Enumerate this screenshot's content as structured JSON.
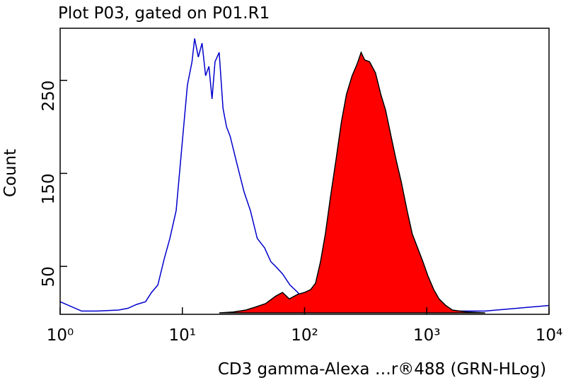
{
  "chart_data": {
    "type": "histogram-overlay",
    "title": "Plot P03, gated on P01.R1",
    "x_label": "CD3 gamma-Alexa …r®488 (GRN-HLog)",
    "y_label": "Count",
    "xscale": "log",
    "xlim": [
      1,
      10000
    ],
    "xticks": [
      {
        "value": 1,
        "label": "10⁰"
      },
      {
        "value": 10,
        "label": "10¹"
      },
      {
        "value": 100,
        "label": "10²"
      },
      {
        "value": 1000,
        "label": "10³"
      },
      {
        "value": 10000,
        "label": "10⁴"
      }
    ],
    "ylim": [
      0,
      306
    ],
    "yticks": [
      50,
      150,
      250
    ],
    "series": [
      {
        "color": "#0000cc",
        "fill": false,
        "x": [
          1,
          1.5,
          2,
          3,
          3.6,
          4.2,
          5,
          5.6,
          6.3,
          7.1,
          7.9,
          8.9,
          10,
          11,
          12,
          12.6,
          13.5,
          14.5,
          15.5,
          16.5,
          17.5,
          18.5,
          20,
          21.5,
          23,
          24.6,
          28,
          32,
          36,
          41,
          47,
          53,
          58,
          66,
          76,
          88,
          100,
          115,
          130,
          200,
          500,
          1000,
          3000,
          10000
        ],
        "values": [
          12,
          2,
          2,
          3,
          5,
          9,
          12,
          22,
          30,
          58,
          80,
          110,
          185,
          245,
          270,
          295,
          275,
          290,
          255,
          265,
          230,
          270,
          280,
          220,
          200,
          190,
          160,
          130,
          110,
          80,
          70,
          55,
          50,
          42,
          30,
          22,
          12,
          8,
          3,
          2,
          2,
          2,
          2,
          8
        ]
      },
      {
        "color": "#ff0000",
        "fill": true,
        "x": [
          20,
          26,
          33,
          39,
          48,
          58,
          66,
          75,
          88,
          100,
          112,
          123,
          135,
          148,
          163,
          181,
          200,
          220,
          245,
          270,
          290,
          310,
          340,
          380,
          420,
          460,
          510,
          560,
          620,
          690,
          760,
          840,
          930,
          1020,
          1140,
          1260,
          1430,
          1620,
          2140,
          3000
        ],
        "values": [
          0,
          1,
          3,
          6,
          10,
          18,
          22,
          15,
          20,
          22,
          25,
          32,
          55,
          85,
          125,
          165,
          205,
          235,
          255,
          268,
          280,
          272,
          270,
          258,
          235,
          218,
          190,
          165,
          140,
          110,
          85,
          70,
          55,
          40,
          25,
          15,
          8,
          3,
          1,
          0
        ]
      }
    ]
  }
}
